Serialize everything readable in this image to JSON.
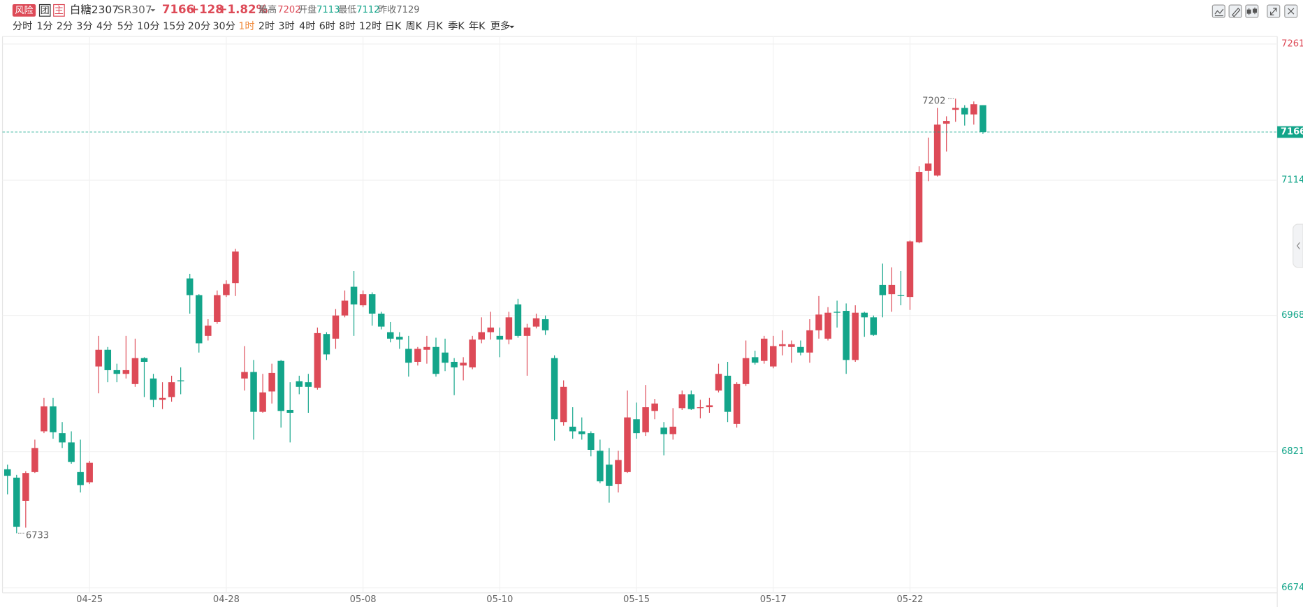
{
  "header": {
    "badges": [
      "风险",
      "团",
      "主"
    ],
    "name": "白糖2307",
    "code": "SR307",
    "price": 7166,
    "change": "+128",
    "change_pct": "+1.82%",
    "stats": [
      {
        "label": "最高",
        "value": 7202
      },
      {
        "label": "开盘",
        "value": 7113
      },
      {
        "label": "最低",
        "value": 7112
      },
      {
        "label": "昨收",
        "value": 7129
      }
    ]
  },
  "toolbar": {
    "periods": [
      "分时",
      "1分",
      "2分",
      "3分",
      "4分",
      "5分",
      "10分",
      "15分",
      "20分",
      "30分",
      "1时",
      "2时",
      "3时",
      "4时",
      "6时",
      "8时",
      "12时",
      "日K",
      "周K",
      "月K",
      "季K",
      "年K",
      "更多"
    ],
    "active": 10
  },
  "chart_data": {
    "type": "candlestick",
    "up_color": "#dd4a57",
    "down_color": "#13a58a",
    "grid": true,
    "ylim": [
      6674,
      7261
    ],
    "yticks": [
      6674,
      6821,
      6968,
      7114,
      7261
    ],
    "last_price": 7166,
    "high_mark": 7202,
    "low_mark": 6733,
    "categories": [
      null,
      null,
      null,
      null,
      null,
      null,
      null,
      null,
      null,
      "04-25",
      null,
      null,
      null,
      null,
      null,
      null,
      null,
      null,
      null,
      null,
      null,
      null,
      null,
      null,
      "04-28",
      null,
      null,
      null,
      null,
      null,
      null,
      null,
      null,
      null,
      null,
      null,
      null,
      null,
      null,
      "05-08",
      null,
      null,
      null,
      null,
      null,
      null,
      null,
      null,
      null,
      null,
      null,
      null,
      null,
      null,
      "05-10",
      null,
      null,
      null,
      null,
      null,
      null,
      null,
      null,
      null,
      null,
      null,
      null,
      null,
      null,
      "05-15",
      null,
      null,
      null,
      null,
      null,
      null,
      null,
      null,
      null,
      null,
      null,
      null,
      null,
      null,
      "05-17",
      null,
      null,
      null,
      null,
      null,
      null,
      null,
      null,
      null,
      null,
      null,
      null,
      null,
      null,
      "05-22",
      null,
      null,
      null,
      null,
      null,
      null,
      null,
      null
    ],
    "open": [
      6802,
      6793,
      6768,
      6799,
      6843,
      6870,
      6841,
      6831,
      6799,
      6788,
      6913,
      6931,
      6909,
      6905,
      6894,
      6922,
      6900,
      6877,
      6880,
      6898,
      7008,
      6990,
      6946,
      6961,
      6990,
      7003,
      6900,
      6907,
      6864,
      6886,
      6919,
      6866,
      6897,
      6896,
      6890,
      6948,
      6943,
      6968,
      6999,
      6979,
      6991,
      6970,
      6950,
      6945,
      6932,
      6918,
      6931,
      6934,
      6928,
      6918,
      6914,
      6912,
      6942,
      6950,
      6946,
      6942,
      6980,
      6946,
      6956,
      6964,
      6922,
      6853,
      6848,
      6843,
      6841,
      6822,
      6807,
      6786,
      6799,
      6856,
      6842,
      6865,
      6847,
      6840,
      6868,
      6883,
      6868,
      6869,
      6887,
      6903,
      6851,
      6894,
      6923,
      6919,
      6913,
      6935,
      6934,
      6934,
      6928,
      6952,
      6943,
      6972,
      6973,
      6920,
      6971,
      6966,
      7001,
      6991,
      6990,
      6988,
      7047,
      7124,
      7119,
      7175,
      7190,
      7192,
      7185,
      7195
    ],
    "high": [
      6807,
      6796,
      6800,
      6834,
      6879,
      6879,
      6853,
      6843,
      6834,
      6811,
      6946,
      6934,
      6916,
      6946,
      6943,
      6923,
      6905,
      6896,
      6903,
      6912,
      7013,
      6991,
      6964,
      6995,
      7006,
      7040,
      6935,
      6920,
      6905,
      6916,
      6920,
      6896,
      6903,
      6905,
      6955,
      6950,
      6975,
      6995,
      7016,
      6995,
      6993,
      6972,
      6961,
      6950,
      6946,
      6934,
      6946,
      6944,
      6943,
      6922,
      6923,
      6946,
      6966,
      6972,
      6955,
      6972,
      6986,
      6959,
      6970,
      6968,
      6925,
      6898,
      6869,
      6858,
      6843,
      6834,
      6825,
      6822,
      6887,
      6874,
      6893,
      6878,
      6853,
      6868,
      6887,
      6887,
      6877,
      6879,
      6916,
      6918,
      6896,
      6941,
      6930,
      6946,
      6946,
      6952,
      6941,
      6941,
      6964,
      6989,
      6977,
      6984,
      6981,
      6979,
      6972,
      6968,
      7024,
      7020,
      7016,
      7049,
      7129,
      7160,
      7192,
      7183,
      7202,
      7195,
      7199,
      7195
    ],
    "low": [
      6775,
      6733,
      6739,
      6798,
      6841,
      6835,
      6825,
      6808,
      6777,
      6786,
      6884,
      6896,
      6896,
      6900,
      6891,
      6880,
      6869,
      6867,
      6875,
      6883,
      6970,
      6928,
      6941,
      6959,
      6988,
      6989,
      6887,
      6834,
      6863,
      6873,
      6847,
      6831,
      6883,
      6863,
      6888,
      6920,
      6932,
      6966,
      6946,
      6977,
      6957,
      6953,
      6939,
      6932,
      6902,
      6914,
      6916,
      6902,
      6908,
      6882,
      6898,
      6910,
      6938,
      6942,
      6923,
      6937,
      6944,
      6903,
      6954,
      6947,
      6833,
      6849,
      6835,
      6834,
      6816,
      6787,
      6766,
      6777,
      6798,
      6835,
      6838,
      6856,
      6817,
      6834,
      6866,
      6866,
      6857,
      6863,
      6885,
      6853,
      6847,
      6892,
      6915,
      6916,
      6911,
      6925,
      6917,
      6925,
      6917,
      6943,
      6941,
      6955,
      6905,
      6918,
      6945,
      6946,
      6966,
      6972,
      6979,
      6974,
      7046,
      7113,
      7118,
      7145,
      7177,
      7173,
      7174,
      7164
    ],
    "close": [
      6795,
      6740,
      6798,
      6825,
      6870,
      6842,
      6831,
      6810,
      6785,
      6809,
      6931,
      6909,
      6905,
      6909,
      6922,
      6918,
      6877,
      6879,
      6896,
      6897,
      6990,
      6938,
      6957,
      6990,
      7002,
      7037,
      6907,
      6864,
      6885,
      6906,
      6865,
      6863,
      6891,
      6891,
      6949,
      6926,
      6968,
      6984,
      6980,
      6991,
      6970,
      6956,
      6943,
      6942,
      6917,
      6932,
      6934,
      6905,
      6917,
      6912,
      6917,
      6942,
      6950,
      6955,
      6942,
      6966,
      6946,
      6955,
      6965,
      6952,
      6856,
      6891,
      6843,
      6840,
      6823,
      6789,
      6784,
      6812,
      6858,
      6841,
      6869,
      6873,
      6840,
      6848,
      6883,
      6867,
      6869,
      6871,
      6905,
      6864,
      6894,
      6922,
      6917,
      6943,
      6935,
      6937,
      6937,
      6928,
      6952,
      6969,
      6971,
      6971,
      6920,
      6971,
      6966,
      6947,
      6990,
      7001,
      6989,
      7048,
      7123,
      7132,
      7174,
      7178,
      7192,
      7185,
      7196,
      7166
    ]
  }
}
